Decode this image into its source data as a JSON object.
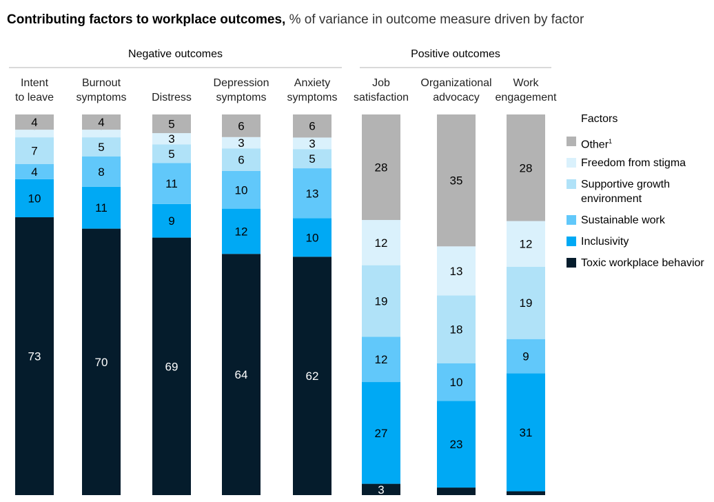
{
  "chart_data": {
    "type": "bar",
    "stacked": true,
    "title": "Contributing factors to workplace outcomes,",
    "subtitle": "% of variance in outcome measure driven by factor",
    "groups": [
      {
        "label": "Negative outcomes",
        "categories": [
          0,
          1,
          2,
          3,
          4
        ]
      },
      {
        "label": "Positive outcomes",
        "categories": [
          5,
          6,
          7
        ]
      }
    ],
    "categories": [
      [
        "Intent",
        "to leave"
      ],
      [
        "Burnout",
        "symptoms"
      ],
      [
        "",
        "Distress"
      ],
      [
        "Depression",
        "symptoms"
      ],
      [
        "Anxiety",
        "symptoms"
      ],
      [
        "Job",
        "satisfaction"
      ],
      [
        "Organizational",
        "advocacy"
      ],
      [
        "Work",
        "engagement"
      ]
    ],
    "series": [
      {
        "name": "Toxic workplace behavior",
        "color": "#051c2c",
        "label_color": "#ffffff",
        "values": [
          73,
          70,
          69,
          64,
          62,
          3,
          2,
          1
        ]
      },
      {
        "name": "Inclusivity",
        "color": "#00a9f4",
        "label_color": "#000000",
        "values": [
          10,
          11,
          9,
          12,
          10,
          27,
          23,
          31
        ]
      },
      {
        "name": "Sustainable work",
        "color": "#61c8fa",
        "label_color": "#000000",
        "values": [
          4,
          8,
          11,
          10,
          13,
          12,
          10,
          9
        ]
      },
      {
        "name": "Supportive growth environment",
        "color": "#b0e2f8",
        "label_color": "#000000",
        "values": [
          7,
          5,
          5,
          6,
          5,
          19,
          18,
          19
        ]
      },
      {
        "name": "Freedom from stigma",
        "color": "#daf1fc",
        "label_color": "#000000",
        "values": [
          2,
          2,
          3,
          3,
          3,
          12,
          13,
          12
        ]
      },
      {
        "name": "Other",
        "footnote": "1",
        "color": "#b3b3b3",
        "label_color": "#000000",
        "values": [
          4,
          4,
          5,
          6,
          6,
          28,
          35,
          28
        ]
      }
    ],
    "legend": {
      "title": "Factors",
      "placement": "right",
      "items": [
        {
          "label": "Other",
          "footnote": "1",
          "color": "#b3b3b3"
        },
        {
          "label": "Freedom from stigma",
          "color": "#daf1fc"
        },
        {
          "label": "Supportive growth environment",
          "color": "#b0e2f8"
        },
        {
          "label": "Sustainable work",
          "color": "#61c8fa"
        },
        {
          "label": "Inclusivity",
          "color": "#00a9f4"
        },
        {
          "label": "Toxic workplace behavior",
          "color": "#051c2c"
        }
      ]
    },
    "ylim": [
      0,
      100
    ],
    "grid": false
  }
}
